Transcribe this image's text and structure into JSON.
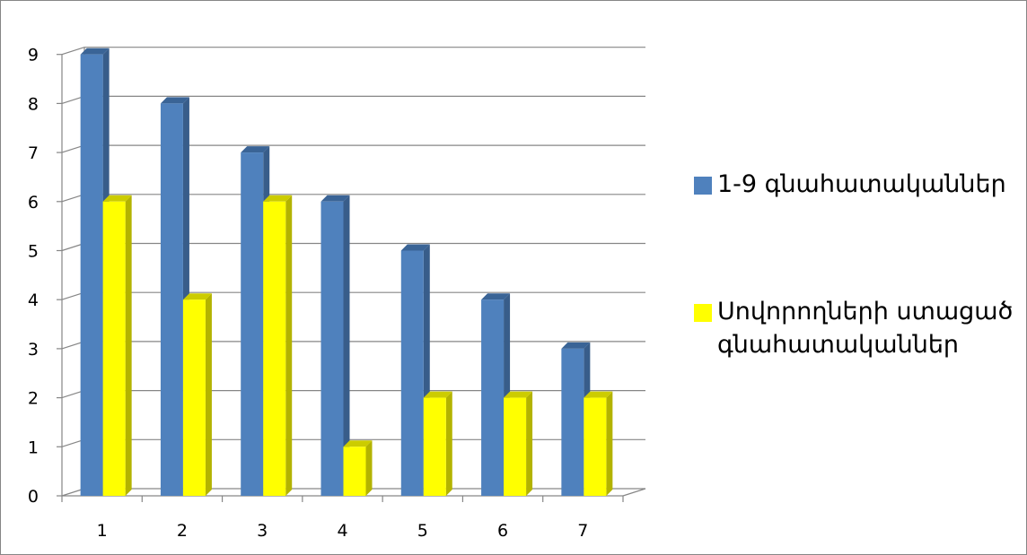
{
  "chart_data": {
    "type": "bar",
    "categories": [
      "1",
      "2",
      "3",
      "4",
      "5",
      "6",
      "7"
    ],
    "series": [
      {
        "name": "1-9 գնահատականներ",
        "values": [
          9,
          8,
          7,
          6,
          5,
          4,
          3
        ],
        "color": "#4F81BD",
        "side_color": "#385D8A",
        "top_color": "#3A6496"
      },
      {
        "name": "Սովորողների ստացած գնահատականներ",
        "values": [
          6,
          4,
          6,
          1,
          2,
          2,
          2
        ],
        "color": "#FFFF00",
        "side_color": "#B3B300",
        "top_color": "#CCCC00"
      }
    ],
    "y_ticks": [
      "0",
      "1",
      "2",
      "3",
      "4",
      "5",
      "6",
      "7",
      "8",
      "9"
    ],
    "ylim": [
      0,
      9
    ],
    "grid": true,
    "legend_position": "right",
    "style": "3d-clustered-column"
  }
}
